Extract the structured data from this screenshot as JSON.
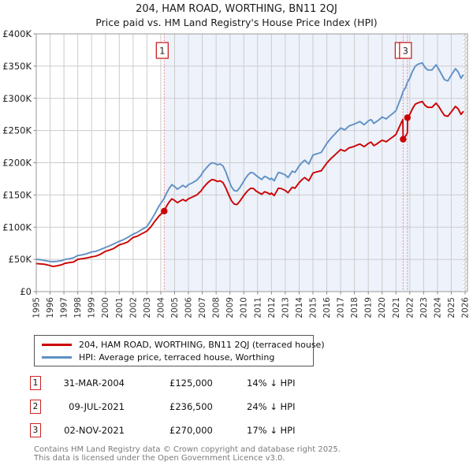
{
  "title": {
    "line1": "204, HAM ROAD, WORTHING, BN11 2QJ",
    "line2": "Price paid vs. HM Land Registry's House Price Index (HPI)"
  },
  "legend": {
    "items": [
      {
        "label": "204, HAM ROAD, WORTHING, BN11 2QJ (terraced house)",
        "color": "#cc0000"
      },
      {
        "label": "HPI: Average price, terraced house, Worthing",
        "color": "#6090c5"
      }
    ]
  },
  "sales_table": {
    "rows": [
      {
        "num": "1",
        "date": "31-MAR-2004",
        "price": "£125,000",
        "vs_hpi": "14% ↓ HPI"
      },
      {
        "num": "2",
        "date": "09-JUL-2021",
        "price": "£236,500",
        "vs_hpi": "24% ↓ HPI"
      },
      {
        "num": "3",
        "date": "02-NOV-2021",
        "price": "£270,000",
        "vs_hpi": "17% ↓ HPI"
      }
    ]
  },
  "footer": {
    "line1": "Contains HM Land Registry data © Crown copyright and database right 2025.",
    "line2": "This data is licensed under the Open Government Licence v3.0."
  },
  "chart_data": {
    "type": "line",
    "title": "204, HAM ROAD, WORTHING, BN11 2QJ — Price paid vs. HPI",
    "grid": true,
    "grid_color": "#cccccc",
    "dashed_line_color": "#ee8888",
    "shading": {
      "from_year": 2004.25,
      "color": "#edf2fb"
    },
    "future_hatch": {
      "from_year": 2025.85,
      "line_color": "#c3c7cf"
    },
    "x_axis": {
      "lim": [
        1995,
        2026.17
      ],
      "ticks": [
        "1995",
        "1996",
        "1997",
        "1998",
        "1999",
        "2000",
        "2001",
        "2002",
        "2003",
        "2004",
        "2005",
        "2006",
        "2007",
        "2008",
        "2009",
        "2010",
        "2011",
        "2012",
        "2013",
        "2014",
        "2015",
        "2016",
        "2017",
        "2018",
        "2019",
        "2020",
        "2021",
        "2022",
        "2023",
        "2024",
        "2025",
        "2026"
      ]
    },
    "y_axis": {
      "lim": [
        0,
        400
      ],
      "unit": "£K",
      "ticks": [
        {
          "v": 0,
          "label": "£0"
        },
        {
          "v": 50,
          "label": "£50K"
        },
        {
          "v": 100,
          "label": "£100K"
        },
        {
          "v": 150,
          "label": "£150K"
        },
        {
          "v": 200,
          "label": "£200K"
        },
        {
          "v": 250,
          "label": "£250K"
        },
        {
          "v": 300,
          "label": "£300K"
        },
        {
          "v": 350,
          "label": "£350K"
        },
        {
          "v": 400,
          "label": "£400K"
        }
      ]
    },
    "hpi_series": {
      "name": "HPI: Average price, terraced house, Worthing",
      "color": "#6090c5",
      "points": [
        [
          1995.0,
          50
        ],
        [
          1995.3,
          49.5
        ],
        [
          1995.6,
          48.5
        ],
        [
          1995.9,
          47
        ],
        [
          1996.2,
          46.5
        ],
        [
          1996.5,
          47
        ],
        [
          1996.8,
          48
        ],
        [
          1997.1,
          50
        ],
        [
          1997.4,
          51
        ],
        [
          1997.7,
          52.5
        ],
        [
          1998.0,
          56
        ],
        [
          1998.3,
          57
        ],
        [
          1998.6,
          58.5
        ],
        [
          1999.0,
          61.5
        ],
        [
          1999.3,
          62.5
        ],
        [
          1999.6,
          65
        ],
        [
          2000.0,
          68.5
        ],
        [
          2000.3,
          71
        ],
        [
          2000.6,
          74
        ],
        [
          2001.0,
          78
        ],
        [
          2001.3,
          80.5
        ],
        [
          2001.6,
          84
        ],
        [
          2002.0,
          89
        ],
        [
          2002.3,
          92
        ],
        [
          2002.6,
          96
        ],
        [
          2003.0,
          101
        ],
        [
          2003.3,
          111
        ],
        [
          2003.6,
          122
        ],
        [
          2003.9,
          134
        ],
        [
          2004.1,
          140
        ],
        [
          2004.25,
          145
        ],
        [
          2004.4,
          152
        ],
        [
          2004.6,
          160
        ],
        [
          2004.8,
          166
        ],
        [
          2005.0,
          163
        ],
        [
          2005.2,
          159
        ],
        [
          2005.4,
          162
        ],
        [
          2005.6,
          165
        ],
        [
          2005.8,
          162
        ],
        [
          2006.0,
          166
        ],
        [
          2006.3,
          169
        ],
        [
          2006.6,
          173
        ],
        [
          2006.9,
          180
        ],
        [
          2007.1,
          187
        ],
        [
          2007.3,
          192
        ],
        [
          2007.5,
          197
        ],
        [
          2007.7,
          200
        ],
        [
          2007.9,
          199
        ],
        [
          2008.1,
          197
        ],
        [
          2008.3,
          198
        ],
        [
          2008.5,
          195
        ],
        [
          2008.7,
          186
        ],
        [
          2008.9,
          174
        ],
        [
          2009.1,
          163
        ],
        [
          2009.3,
          157
        ],
        [
          2009.5,
          156
        ],
        [
          2009.7,
          161
        ],
        [
          2009.9,
          168
        ],
        [
          2010.1,
          175
        ],
        [
          2010.3,
          181
        ],
        [
          2010.5,
          185
        ],
        [
          2010.7,
          184
        ],
        [
          2010.9,
          180
        ],
        [
          2011.1,
          177
        ],
        [
          2011.3,
          174
        ],
        [
          2011.5,
          179
        ],
        [
          2011.7,
          177
        ],
        [
          2011.9,
          174
        ],
        [
          2012.0,
          176
        ],
        [
          2012.2,
          172
        ],
        [
          2012.5,
          185
        ],
        [
          2012.7,
          184
        ],
        [
          2013.0,
          181
        ],
        [
          2013.2,
          177
        ],
        [
          2013.5,
          187
        ],
        [
          2013.7,
          185
        ],
        [
          2014.0,
          195
        ],
        [
          2014.2,
          200
        ],
        [
          2014.4,
          204
        ],
        [
          2014.7,
          198
        ],
        [
          2015.0,
          212
        ],
        [
          2015.3,
          214
        ],
        [
          2015.6,
          216
        ],
        [
          2016.0,
          230
        ],
        [
          2016.3,
          238
        ],
        [
          2016.6,
          245
        ],
        [
          2017.0,
          254
        ],
        [
          2017.3,
          251
        ],
        [
          2017.6,
          257
        ],
        [
          2018.0,
          260
        ],
        [
          2018.2,
          262
        ],
        [
          2018.4,
          264
        ],
        [
          2018.7,
          259
        ],
        [
          2019.0,
          265
        ],
        [
          2019.2,
          267
        ],
        [
          2019.4,
          261
        ],
        [
          2019.6,
          264
        ],
        [
          2019.8,
          267
        ],
        [
          2020.0,
          271
        ],
        [
          2020.3,
          268
        ],
        [
          2020.5,
          272
        ],
        [
          2020.8,
          277
        ],
        [
          2021.0,
          281
        ],
        [
          2021.2,
          292
        ],
        [
          2021.35,
          300
        ],
        [
          2021.52,
          311
        ],
        [
          2021.7,
          317
        ],
        [
          2021.83,
          325
        ],
        [
          2022.0,
          331
        ],
        [
          2022.2,
          342
        ],
        [
          2022.4,
          350
        ],
        [
          2022.6,
          353
        ],
        [
          2022.9,
          355
        ],
        [
          2023.1,
          348
        ],
        [
          2023.3,
          344
        ],
        [
          2023.6,
          344
        ],
        [
          2023.9,
          352
        ],
        [
          2024.1,
          345
        ],
        [
          2024.3,
          337
        ],
        [
          2024.5,
          329
        ],
        [
          2024.75,
          327
        ],
        [
          2025.0,
          336
        ],
        [
          2025.3,
          346
        ],
        [
          2025.5,
          341
        ],
        [
          2025.7,
          331
        ],
        [
          2025.85,
          336
        ]
      ]
    },
    "property_series": {
      "name": "204, HAM ROAD, WORTHING, BN11 2QJ (terraced house)",
      "color": "#cc0000",
      "points": [
        [
          1995.0,
          43.5
        ],
        [
          1995.3,
          43
        ],
        [
          1995.6,
          42.5
        ],
        [
          1995.9,
          41
        ],
        [
          1996.2,
          39
        ],
        [
          1996.5,
          40
        ],
        [
          1996.8,
          41.5
        ],
        [
          1997.1,
          44
        ],
        [
          1997.4,
          45
        ],
        [
          1997.7,
          46
        ],
        [
          1998.0,
          50
        ],
        [
          1998.3,
          51
        ],
        [
          1998.6,
          52
        ],
        [
          1999.0,
          54
        ],
        [
          1999.3,
          55
        ],
        [
          1999.6,
          57.5
        ],
        [
          2000.0,
          62.5
        ],
        [
          2000.3,
          64.5
        ],
        [
          2000.6,
          67
        ],
        [
          2001.0,
          72.5
        ],
        [
          2001.3,
          74.5
        ],
        [
          2001.6,
          77
        ],
        [
          2002.0,
          84
        ],
        [
          2002.3,
          86
        ],
        [
          2002.6,
          89.5
        ],
        [
          2003.0,
          94
        ],
        [
          2003.3,
          101
        ],
        [
          2003.6,
          110
        ],
        [
          2003.9,
          118
        ],
        [
          2004.1,
          122
        ],
        [
          2004.25,
          125
        ],
        [
          2004.4,
          132
        ],
        [
          2004.6,
          139
        ],
        [
          2004.8,
          144
        ],
        [
          2005.0,
          141.5
        ],
        [
          2005.2,
          138
        ],
        [
          2005.4,
          140.5
        ],
        [
          2005.6,
          143
        ],
        [
          2005.8,
          140.5
        ],
        [
          2006.0,
          144
        ],
        [
          2006.3,
          147
        ],
        [
          2006.6,
          150
        ],
        [
          2006.9,
          156
        ],
        [
          2007.1,
          162
        ],
        [
          2007.3,
          167
        ],
        [
          2007.5,
          171
        ],
        [
          2007.7,
          174
        ],
        [
          2007.9,
          173
        ],
        [
          2008.1,
          171
        ],
        [
          2008.3,
          172
        ],
        [
          2008.5,
          169
        ],
        [
          2008.7,
          161
        ],
        [
          2008.9,
          151
        ],
        [
          2009.1,
          141.5
        ],
        [
          2009.3,
          136
        ],
        [
          2009.5,
          135
        ],
        [
          2009.7,
          140
        ],
        [
          2009.9,
          146
        ],
        [
          2010.1,
          152
        ],
        [
          2010.3,
          157
        ],
        [
          2010.5,
          160.5
        ],
        [
          2010.7,
          160
        ],
        [
          2010.9,
          156
        ],
        [
          2011.1,
          153.5
        ],
        [
          2011.3,
          151
        ],
        [
          2011.5,
          155
        ],
        [
          2011.7,
          153.5
        ],
        [
          2011.9,
          151
        ],
        [
          2012.0,
          153
        ],
        [
          2012.2,
          149
        ],
        [
          2012.5,
          160.5
        ],
        [
          2012.7,
          160
        ],
        [
          2013.0,
          157
        ],
        [
          2013.2,
          153.5
        ],
        [
          2013.5,
          162
        ],
        [
          2013.7,
          160.5
        ],
        [
          2014.0,
          169
        ],
        [
          2014.2,
          173.5
        ],
        [
          2014.4,
          177
        ],
        [
          2014.7,
          172
        ],
        [
          2015.0,
          184
        ],
        [
          2015.3,
          186
        ],
        [
          2015.6,
          187.5
        ],
        [
          2016.0,
          199.5
        ],
        [
          2016.3,
          206.5
        ],
        [
          2016.6,
          212.5
        ],
        [
          2017.0,
          220.5
        ],
        [
          2017.3,
          218
        ],
        [
          2017.6,
          223
        ],
        [
          2018.0,
          225.5
        ],
        [
          2018.2,
          227.5
        ],
        [
          2018.4,
          229
        ],
        [
          2018.7,
          225
        ],
        [
          2019.0,
          230
        ],
        [
          2019.2,
          232
        ],
        [
          2019.4,
          226.5
        ],
        [
          2019.6,
          229
        ],
        [
          2019.8,
          232
        ],
        [
          2020.0,
          235
        ],
        [
          2020.3,
          232.5
        ],
        [
          2020.5,
          236
        ],
        [
          2020.8,
          240.5
        ],
        [
          2021.0,
          244
        ],
        [
          2021.2,
          253.5
        ],
        [
          2021.35,
          260.5
        ],
        [
          2021.5,
          267
        ],
        [
          2021.52,
          236.5
        ],
        [
          2021.6,
          239
        ],
        [
          2021.7,
          242
        ],
        [
          2021.8,
          245
        ],
        [
          2021.83,
          247
        ],
        [
          2021.84,
          270
        ],
        [
          2022.0,
          275
        ],
        [
          2022.2,
          284
        ],
        [
          2022.4,
          291
        ],
        [
          2022.6,
          293
        ],
        [
          2022.9,
          295
        ],
        [
          2023.1,
          289
        ],
        [
          2023.3,
          286
        ],
        [
          2023.6,
          286
        ],
        [
          2023.9,
          292.5
        ],
        [
          2024.1,
          287
        ],
        [
          2024.3,
          280
        ],
        [
          2024.5,
          273.5
        ],
        [
          2024.75,
          272
        ],
        [
          2025.0,
          279
        ],
        [
          2025.3,
          287.5
        ],
        [
          2025.5,
          283.5
        ],
        [
          2025.7,
          275
        ],
        [
          2025.85,
          279
        ]
      ]
    },
    "sales": [
      {
        "label": "1",
        "date": "31-MAR-2004",
        "year": 2004.25,
        "price_k": 125,
        "price": "£125,000",
        "vs_hpi": "14% ↓ HPI"
      },
      {
        "label": "2",
        "date": "09-JUL-2021",
        "year": 2021.52,
        "price_k": 236.5,
        "price": "£236,500",
        "vs_hpi": "24% ↓ HPI"
      },
      {
        "label": "3",
        "date": "02-NOV-2021",
        "year": 2021.83,
        "price_k": 270,
        "price": "£270,000",
        "vs_hpi": "17% ↓ HPI"
      }
    ]
  }
}
